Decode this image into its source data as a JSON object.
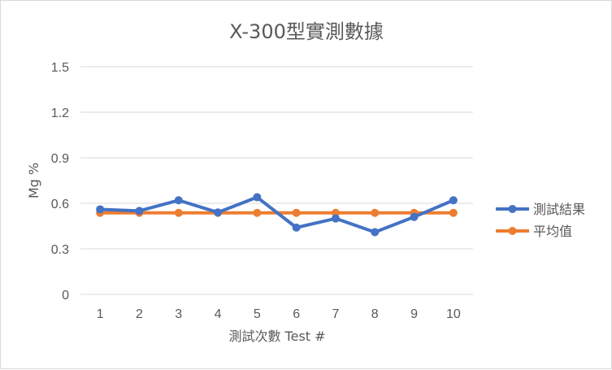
{
  "chart_data": {
    "type": "line",
    "title": "X-300型實測數據",
    "xlabel": "測試次數 Test #",
    "ylabel": "Mg %",
    "categories": [
      "1",
      "2",
      "3",
      "4",
      "5",
      "6",
      "7",
      "8",
      "9",
      "10"
    ],
    "y_ticks": [
      "0",
      "0.3",
      "0.6",
      "0.9",
      "1.2",
      "1.5"
    ],
    "ylim": [
      0,
      1.5
    ],
    "grid": "horizontal",
    "legend_position": "right",
    "series": [
      {
        "name": "測試結果",
        "color": "#4472c4",
        "values": [
          0.56,
          0.55,
          0.62,
          0.54,
          0.64,
          0.44,
          0.5,
          0.41,
          0.51,
          0.62
        ]
      },
      {
        "name": "平均值",
        "color": "#ed7d31",
        "values": [
          0.537,
          0.537,
          0.537,
          0.537,
          0.537,
          0.537,
          0.537,
          0.537,
          0.537,
          0.537
        ]
      }
    ]
  }
}
